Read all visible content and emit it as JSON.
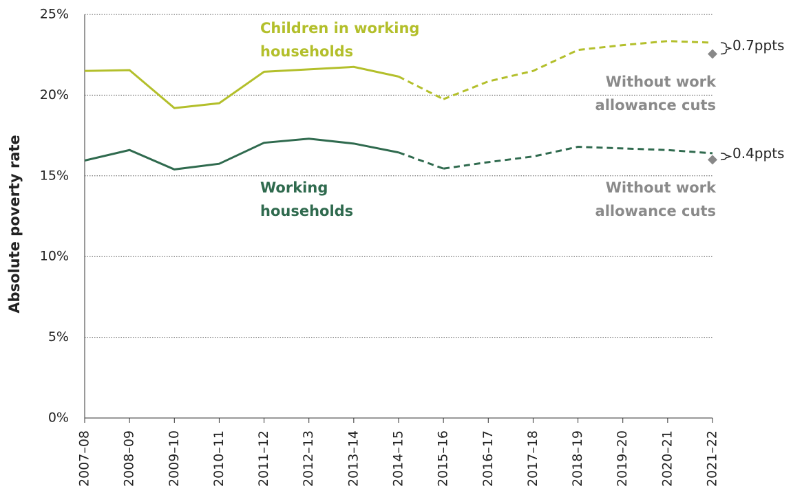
{
  "chart_data": {
    "type": "line",
    "ylabel": "Absolute poverty rate",
    "categories": [
      "2007–08",
      "2008–09",
      "2009–10",
      "2010–11",
      "2011–12",
      "2012–13",
      "2013–14",
      "2014–15",
      "2015–16",
      "2016–17",
      "2017–18",
      "2018–19",
      "2019–20",
      "2020–21",
      "2021–22"
    ],
    "ylim": [
      0,
      25
    ],
    "yticks": [
      {
        "value": 0,
        "label": "0%"
      },
      {
        "value": 5,
        "label": "5%"
      },
      {
        "value": 10,
        "label": "10%"
      },
      {
        "value": 15,
        "label": "15%"
      },
      {
        "value": 20,
        "label": "20%"
      },
      {
        "value": 25,
        "label": "25%"
      }
    ],
    "grid": true,
    "series": [
      {
        "name": "Children in working households",
        "color": "#b3bf2b",
        "values": [
          21.5,
          21.55,
          19.2,
          19.5,
          21.45,
          21.6,
          21.75,
          21.15,
          null,
          null,
          null,
          null,
          null,
          null,
          null
        ],
        "projected": [
          null,
          null,
          null,
          null,
          null,
          null,
          null,
          null,
          19.75,
          20.85,
          21.5,
          22.8,
          23.1,
          23.35,
          23.25
        ],
        "scenario": 22.55,
        "scenario_label": "Without work allowance cuts",
        "difference_label": "0.7ppts"
      },
      {
        "name": "Working households",
        "color": "#2f6a4e",
        "values": [
          15.95,
          16.6,
          15.4,
          15.75,
          17.05,
          17.3,
          17.0,
          16.45,
          null,
          null,
          null,
          null,
          null,
          null,
          null
        ],
        "projected": [
          null,
          null,
          null,
          null,
          null,
          null,
          null,
          null,
          15.45,
          15.85,
          16.2,
          16.8,
          16.7,
          16.6,
          16.4
        ],
        "scenario": 16.0,
        "scenario_label": "Without work allowance cuts",
        "difference_label": "0.4ppts"
      }
    ]
  }
}
